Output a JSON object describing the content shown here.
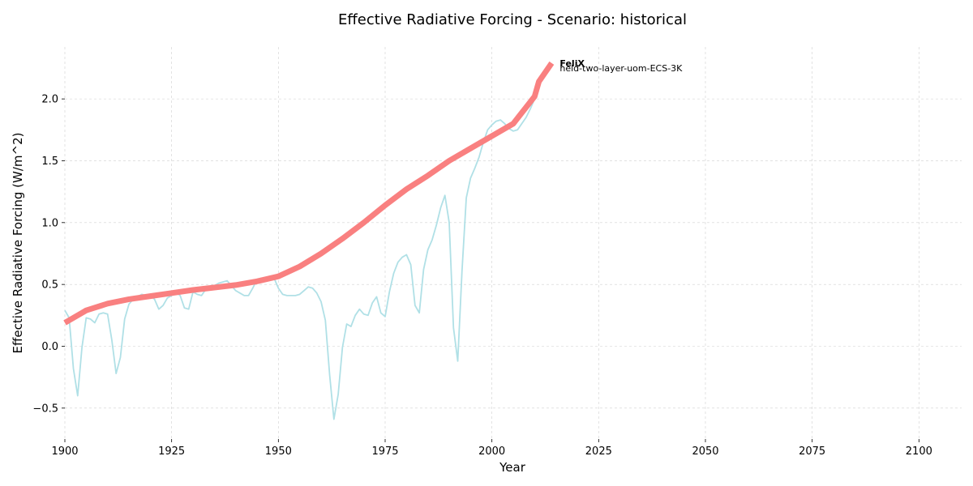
{
  "chart_data": {
    "type": "line",
    "title": "Effective Radiative Forcing - Scenario: historical",
    "xlabel": "Year",
    "ylabel": "Effective Radiative Forcing (W/m^2)",
    "xlim": [
      1900,
      2110
    ],
    "ylim": [
      -0.75,
      2.42
    ],
    "xticks": [
      1900,
      1925,
      1950,
      1975,
      2000,
      2025,
      2050,
      2075,
      2100
    ],
    "yticks": [
      -0.5,
      0.0,
      0.5,
      1.0,
      1.5,
      2.0
    ],
    "grid": true,
    "legend": "none",
    "series": [
      {
        "name": "held-two-layer-uom-ECS-3K",
        "color": "#b0e0e6",
        "x": [
          1900,
          1901,
          1902,
          1903,
          1904,
          1905,
          1906,
          1907,
          1908,
          1909,
          1910,
          1911,
          1912,
          1913,
          1914,
          1915,
          1916,
          1917,
          1918,
          1919,
          1920,
          1921,
          1922,
          1923,
          1924,
          1925,
          1926,
          1927,
          1928,
          1929,
          1930,
          1931,
          1932,
          1933,
          1934,
          1935,
          1936,
          1937,
          1938,
          1939,
          1940,
          1941,
          1942,
          1943,
          1944,
          1945,
          1946,
          1947,
          1948,
          1949,
          1950,
          1951,
          1952,
          1953,
          1954,
          1955,
          1956,
          1957,
          1958,
          1959,
          1960,
          1961,
          1962,
          1963,
          1964,
          1965,
          1966,
          1967,
          1968,
          1969,
          1970,
          1971,
          1972,
          1973,
          1974,
          1975,
          1976,
          1977,
          1978,
          1979,
          1980,
          1981,
          1982,
          1983,
          1984,
          1985,
          1986,
          1987,
          1988,
          1989,
          1990,
          1991,
          1992,
          1993,
          1994,
          1995,
          1996,
          1997,
          1998,
          1999,
          2000,
          2001,
          2002,
          2003,
          2004,
          2005,
          2006,
          2007,
          2008,
          2009,
          2010,
          2011,
          2012,
          2013,
          2014
        ],
        "values": [
          0.29,
          0.23,
          -0.18,
          -0.4,
          -0.01,
          0.23,
          0.22,
          0.19,
          0.26,
          0.27,
          0.26,
          0.05,
          -0.22,
          -0.09,
          0.22,
          0.34,
          0.38,
          0.4,
          0.42,
          0.41,
          0.41,
          0.38,
          0.3,
          0.33,
          0.39,
          0.41,
          0.44,
          0.41,
          0.31,
          0.3,
          0.44,
          0.42,
          0.41,
          0.46,
          0.48,
          0.49,
          0.51,
          0.52,
          0.53,
          0.49,
          0.45,
          0.43,
          0.41,
          0.41,
          0.47,
          0.54,
          0.55,
          0.55,
          0.55,
          0.55,
          0.47,
          0.42,
          0.41,
          0.41,
          0.41,
          0.42,
          0.45,
          0.48,
          0.47,
          0.43,
          0.36,
          0.21,
          -0.23,
          -0.59,
          -0.39,
          -0.01,
          0.18,
          0.16,
          0.25,
          0.3,
          0.26,
          0.25,
          0.35,
          0.4,
          0.27,
          0.24,
          0.44,
          0.59,
          0.68,
          0.72,
          0.74,
          0.66,
          0.33,
          0.27,
          0.62,
          0.78,
          0.86,
          0.98,
          1.12,
          1.22,
          1.0,
          0.15,
          -0.12,
          0.61,
          1.2,
          1.36,
          1.44,
          1.53,
          1.65,
          1.75,
          1.79,
          1.82,
          1.83,
          1.8,
          1.76,
          1.74,
          1.75,
          1.8,
          1.85,
          1.92,
          2.0,
          2.12,
          2.18,
          2.23,
          2.26
        ]
      },
      {
        "name": "FeliX",
        "color": "#f98080",
        "x": [
          1900,
          1905,
          1910,
          1915,
          1920,
          1925,
          1930,
          1935,
          1940,
          1945,
          1950,
          1955,
          1960,
          1965,
          1970,
          1975,
          1980,
          1985,
          1990,
          1995,
          2000,
          2005,
          2010,
          2011,
          2012,
          2013,
          2014
        ],
        "values": [
          0.19,
          0.29,
          0.345,
          0.38,
          0.405,
          0.43,
          0.455,
          0.475,
          0.495,
          0.525,
          0.565,
          0.645,
          0.75,
          0.87,
          1.0,
          1.14,
          1.27,
          1.38,
          1.5,
          1.6,
          1.7,
          1.8,
          2.02,
          2.14,
          2.19,
          2.24,
          2.29
        ]
      }
    ]
  }
}
